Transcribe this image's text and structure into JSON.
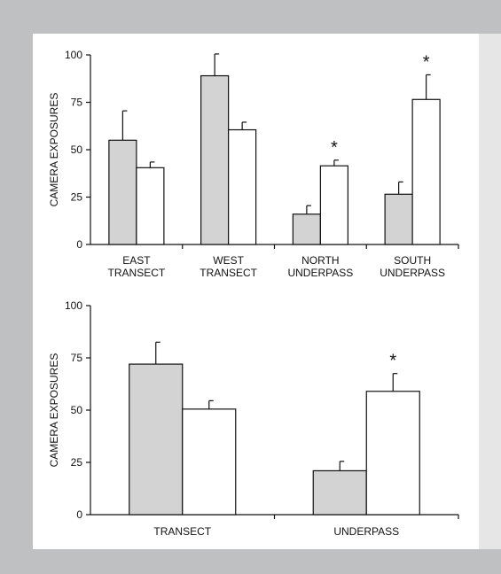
{
  "chart_data": [
    {
      "type": "bar",
      "title": "",
      "ylabel": "CAMERA EXPOSURES",
      "xlabel": "",
      "ylim": [
        0,
        100
      ],
      "yticks": [
        0,
        25,
        50,
        75,
        100
      ],
      "categories": [
        [
          "EAST",
          "TRANSECT"
        ],
        [
          "WEST",
          "TRANSECT"
        ],
        [
          "NORTH",
          "UNDERPASS"
        ],
        [
          "SOUTH",
          "UNDERPASS"
        ]
      ],
      "series": [
        {
          "fill": "#d3d3d3",
          "values": [
            55,
            89,
            16,
            26.5
          ],
          "errors": [
            15.5,
            11.5,
            4.5,
            6.5
          ]
        },
        {
          "fill": "#ffffff",
          "values": [
            40.5,
            60.5,
            41.5,
            76.5
          ],
          "errors": [
            3,
            4,
            3,
            13
          ]
        }
      ],
      "significance": [
        "",
        "",
        "*",
        "*"
      ],
      "grid": false,
      "legend": "none"
    },
    {
      "type": "bar",
      "title": "",
      "ylabel": "CAMERA EXPOSURES",
      "xlabel": "",
      "ylim": [
        0,
        100
      ],
      "yticks": [
        0,
        25,
        50,
        75,
        100
      ],
      "categories": [
        [
          "TRANSECT"
        ],
        [
          "UNDERPASS"
        ]
      ],
      "series": [
        {
          "fill": "#d3d3d3",
          "values": [
            72,
            21
          ],
          "errors": [
            10.5,
            4.5
          ]
        },
        {
          "fill": "#ffffff",
          "values": [
            50.5,
            59
          ],
          "errors": [
            4,
            8.5
          ]
        }
      ],
      "significance": [
        "",
        "*"
      ],
      "grid": false,
      "legend": "none"
    }
  ]
}
